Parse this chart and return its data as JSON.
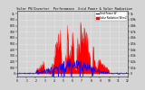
{
  "title": "  Solar PV/Inverter  Performance  Grid Power & Solar Radiation",
  "bg_color": "#d4d4d4",
  "plot_bg": "#d4d4d4",
  "grid_color": "#ffffff",
  "red_color": "#ff0000",
  "blue_color": "#0000ff",
  "n_points": 288,
  "solar_peak": 1000,
  "x_labels": [
    "0",
    "1",
    "2",
    "3",
    "4",
    "5",
    "6",
    "7",
    "8",
    "9",
    "10",
    "11",
    "12"
  ],
  "legend_labels": [
    "Grid Power W",
    "Solar Radiation W/m2"
  ],
  "legend_colors": [
    "#0000ff",
    "#ff0000"
  ],
  "ylim_min": -50,
  "ylim_max": 1050,
  "left_yticks": [
    0,
    100,
    200,
    300,
    400,
    500,
    600,
    700,
    800,
    900,
    1000
  ],
  "left_yticklabels": [
    "0",
    "100",
    "200",
    "300",
    "400",
    "500",
    "600",
    "700",
    "800",
    "900",
    "1k"
  ],
  "right_yticklabels": [
    "0",
    "0.1k",
    "0.2k",
    "0.3k",
    "0.4k",
    "0.5k",
    "0.6k",
    "0.7k",
    "0.8k",
    "0.9k",
    "1k"
  ]
}
